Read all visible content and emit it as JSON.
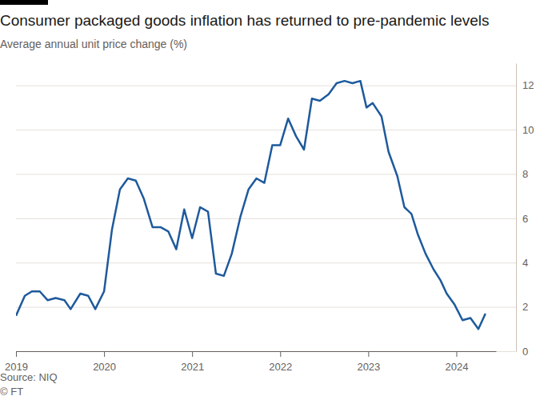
{
  "chart_data": {
    "type": "line",
    "title": "Consumer packaged goods inflation has returned to pre-pandemic levels",
    "subtitle": "Average annual unit price change (%)",
    "source": "Source: NIQ",
    "credit": "© FT",
    "x": [
      2019.0,
      2019.1,
      2019.18,
      2019.27,
      2019.36,
      2019.45,
      2019.55,
      2019.62,
      2019.73,
      2019.82,
      2019.9,
      2020.0,
      2020.09,
      2020.18,
      2020.27,
      2020.36,
      2020.45,
      2020.55,
      2020.64,
      2020.73,
      2020.82,
      2020.91,
      2021.0,
      2021.09,
      2021.18,
      2021.27,
      2021.36,
      2021.45,
      2021.55,
      2021.64,
      2021.73,
      2021.82,
      2021.91,
      2022.0,
      2022.09,
      2022.18,
      2022.27,
      2022.36,
      2022.45,
      2022.55,
      2022.64,
      2022.73,
      2022.82,
      2022.91,
      2022.98,
      2023.05,
      2023.15,
      2023.23,
      2023.33,
      2023.41,
      2023.49,
      2023.56,
      2023.65,
      2023.74,
      2023.82,
      2023.89,
      2023.98,
      2024.07,
      2024.16,
      2024.25,
      2024.33
    ],
    "series": [
      {
        "color": "#1e5a9c",
        "values": [
          1.6,
          2.5,
          2.7,
          2.7,
          2.3,
          2.4,
          2.3,
          1.9,
          2.6,
          2.5,
          1.9,
          2.7,
          5.5,
          7.3,
          7.8,
          7.7,
          6.9,
          5.6,
          5.6,
          5.4,
          4.6,
          6.4,
          5.1,
          6.5,
          6.3,
          3.5,
          3.4,
          4.4,
          6.1,
          7.3,
          7.8,
          7.6,
          9.3,
          9.3,
          10.5,
          9.7,
          9.1,
          11.4,
          11.3,
          11.6,
          12.1,
          12.2,
          12.1,
          12.2,
          11.0,
          11.2,
          10.6,
          9.0,
          7.9,
          6.5,
          6.2,
          5.3,
          4.4,
          3.7,
          3.2,
          2.6,
          2.1,
          1.4,
          1.5,
          1.0,
          1.7
        ]
      }
    ],
    "xlim": [
      2019,
      2024.45
    ],
    "xticks": [
      2019,
      2020,
      2021,
      2022,
      2023,
      2024
    ],
    "ylim": [
      0,
      13
    ],
    "yticks": [
      0,
      2,
      4,
      6,
      8,
      10,
      12
    ],
    "grid": true
  }
}
